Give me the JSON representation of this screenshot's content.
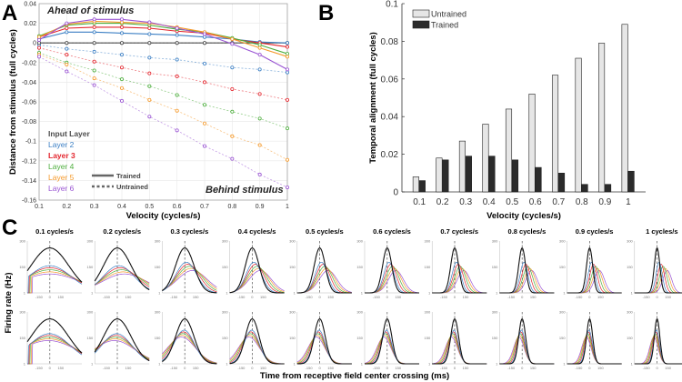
{
  "panel_labels": [
    "A",
    "B",
    "C"
  ],
  "colors": {
    "Input Layer": "#4d4d4d",
    "Layer 2": "#3b7fc4",
    "Layer 3": "#e3262e",
    "Layer 4": "#4eae3e",
    "Layer 5": "#f59a2c",
    "Layer 6": "#9a55d3",
    "untrained_bar": "#e6e6e6",
    "trained_bar": "#2b2b2b"
  },
  "chart_data": [
    {
      "panel": "A",
      "type": "line",
      "xlabel": "Velocity (cycles/s)",
      "ylabel": "Distance from stimulus (full cycles)",
      "xlim": [
        0.1,
        1
      ],
      "ylim": [
        -0.16,
        0.04
      ],
      "xticks": [
        "0.1",
        "0.2",
        "0.3",
        "0.4",
        "0.5",
        "0.6",
        "0.7",
        "0.8",
        "0.9",
        "1"
      ],
      "yticks": [
        "0.04",
        "0.02",
        "0",
        "-0.02",
        "-0.04",
        "-0.06",
        "-0.08",
        "-0.1",
        "-0.12",
        "-0.14",
        "-0.16"
      ],
      "grid": true,
      "annotations": [
        "Ahead of stimulus",
        "Behind stimulus"
      ],
      "legend_layers": [
        "Input Layer",
        "Layer 2",
        "Layer 3",
        "Layer 4",
        "Layer 5",
        "Layer 6"
      ],
      "legend_styles": [
        "Trained",
        "Untrained"
      ],
      "legend_placement": "bottom-left",
      "x": [
        0.1,
        0.2,
        0.3,
        0.4,
        0.5,
        0.6,
        0.7,
        0.8,
        0.9,
        1
      ],
      "series": [
        {
          "name": "Input Layer",
          "style": "Trained",
          "values": [
            0,
            0,
            0,
            0,
            0,
            0,
            0,
            0,
            0,
            0
          ]
        },
        {
          "name": "Layer 2",
          "style": "Trained",
          "values": [
            0.004,
            0.011,
            0.011,
            0.01,
            0.009,
            0.008,
            0.006,
            0.004,
            0.001,
            0
          ]
        },
        {
          "name": "Layer 3",
          "style": "Trained",
          "values": [
            0.006,
            0.015,
            0.016,
            0.016,
            0.015,
            0.012,
            0.01,
            0.004,
            0.0,
            -0.004
          ]
        },
        {
          "name": "Layer 4",
          "style": "Trained",
          "values": [
            0.007,
            0.018,
            0.02,
            0.02,
            0.018,
            0.014,
            0.011,
            0.005,
            -0.002,
            -0.011
          ]
        },
        {
          "name": "Layer 5",
          "style": "Trained",
          "values": [
            0.006,
            0.019,
            0.022,
            0.021,
            0.02,
            0.016,
            0.011,
            0.004,
            -0.005,
            -0.014
          ]
        },
        {
          "name": "Layer 6",
          "style": "Trained",
          "values": [
            0.003,
            0.02,
            0.024,
            0.024,
            0.021,
            0.015,
            0.009,
            -0.001,
            -0.012,
            -0.027
          ]
        },
        {
          "name": "Input Layer",
          "style": "Untrained",
          "values": [
            0,
            0,
            0,
            0,
            0,
            0,
            0,
            0,
            0,
            0
          ]
        },
        {
          "name": "Layer 2",
          "style": "Untrained",
          "values": [
            -0.002,
            -0.006,
            -0.009,
            -0.012,
            -0.015,
            -0.017,
            -0.021,
            -0.025,
            -0.027,
            -0.03
          ]
        },
        {
          "name": "Layer 3",
          "style": "Untrained",
          "values": [
            -0.005,
            -0.012,
            -0.019,
            -0.025,
            -0.031,
            -0.034,
            -0.04,
            -0.047,
            -0.052,
            -0.058
          ]
        },
        {
          "name": "Layer 4",
          "style": "Untrained",
          "values": [
            -0.01,
            -0.02,
            -0.028,
            -0.037,
            -0.044,
            -0.053,
            -0.063,
            -0.07,
            -0.077,
            -0.087
          ]
        },
        {
          "name": "Layer 5",
          "style": "Untrained",
          "values": [
            -0.012,
            -0.022,
            -0.036,
            -0.046,
            -0.058,
            -0.069,
            -0.082,
            -0.095,
            -0.104,
            -0.119
          ]
        },
        {
          "name": "Layer 6",
          "style": "Untrained",
          "values": [
            -0.014,
            -0.029,
            -0.043,
            -0.059,
            -0.075,
            -0.089,
            -0.105,
            -0.118,
            -0.134,
            -0.147
          ]
        }
      ]
    },
    {
      "panel": "B",
      "type": "bar",
      "xlabel": "Velocity (cycles/s)",
      "ylabel": "Temporal alignment (full cycles)",
      "categories": [
        "0.1",
        "0.2",
        "0.3",
        "0.4",
        "0.5",
        "0.6",
        "0.7",
        "0.8",
        "0.9",
        "1"
      ],
      "ylim": [
        0,
        0.1
      ],
      "yticks": [
        "0",
        "0.02",
        "0.04",
        "0.06",
        "0.08",
        "0.1"
      ],
      "grid": false,
      "legend_placement": "top-left",
      "series": [
        {
          "name": "Untrained",
          "values": [
            0.008,
            0.018,
            0.027,
            0.036,
            0.044,
            0.052,
            0.062,
            0.071,
            0.079,
            0.089
          ]
        },
        {
          "name": "Trained",
          "values": [
            0.006,
            0.017,
            0.019,
            0.019,
            0.017,
            0.013,
            0.01,
            0.004,
            0.004,
            0.011
          ]
        }
      ]
    },
    {
      "panel": "C",
      "type": "line",
      "xlabel": "Time from receptive field center crossing (ms)",
      "ylabel": "Firing rate (Hz)",
      "subplot_titles": [
        "0.1 cycles/s",
        "0.2 cycles/s",
        "0.3 cycles/s",
        "0.4 cycles/s",
        "0.5 cycles/s",
        "0.6 cycles/s",
        "0.7 cycles/s",
        "0.8 cycles/s",
        "0.9 cycles/s",
        "1 cycles/s"
      ],
      "velocities": [
        0.1,
        0.2,
        0.3,
        0.4,
        0.5,
        0.6,
        0.7,
        0.8,
        0.9,
        1
      ],
      "xticks": [
        "-150",
        "0",
        "150"
      ],
      "yticks": [
        "1",
        "150",
        "300"
      ],
      "ylim": [
        1,
        300
      ],
      "rows": [
        "Untrained",
        "Trained"
      ],
      "layers": [
        "Input Layer",
        "Layer 2",
        "Layer 3",
        "Layer 4",
        "Layer 5",
        "Layer 6"
      ]
    }
  ]
}
